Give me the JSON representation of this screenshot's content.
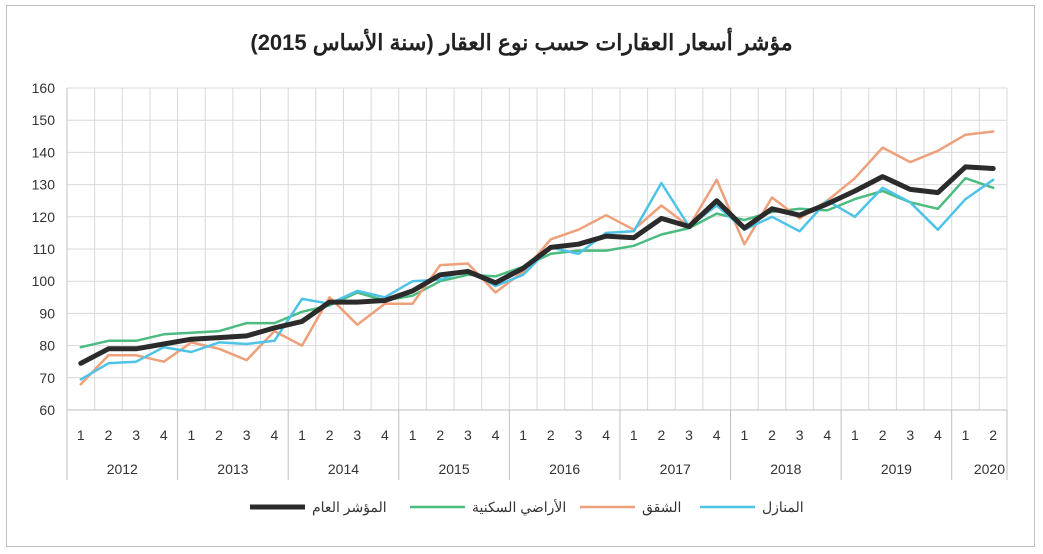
{
  "chart_data": {
    "type": "line",
    "title": "مؤشر أسعار العقارات حسب نوع العقار (سنة الأساس 2015)",
    "ylim": [
      60,
      160
    ],
    "yticks": [
      60,
      70,
      80,
      90,
      100,
      110,
      120,
      130,
      140,
      150,
      160
    ],
    "grid": true,
    "legend_position": "bottom",
    "quarter_labels": [
      "1",
      "2",
      "3",
      "4",
      "1",
      "2",
      "3",
      "4",
      "1",
      "2",
      "3",
      "4",
      "1",
      "2",
      "3",
      "4",
      "1",
      "2",
      "3",
      "4",
      "1",
      "2",
      "3",
      "4",
      "1",
      "2",
      "3",
      "4",
      "1",
      "2",
      "3",
      "4",
      "1",
      "2"
    ],
    "years": [
      "2012",
      "2013",
      "2014",
      "2015",
      "2016",
      "2017",
      "2018",
      "2019",
      "2020"
    ],
    "series": [
      {
        "name": "المؤشر العام",
        "color": "#2b2b2b",
        "width": 5,
        "values": [
          74.5,
          79,
          79,
          80.5,
          82,
          82.5,
          83,
          85.5,
          87.5,
          93.5,
          93.5,
          94,
          97,
          102,
          103,
          99.5,
          104,
          110.5,
          111.5,
          114,
          113.5,
          119.5,
          117,
          125,
          116.5,
          122.5,
          120.5,
          124,
          128,
          132.5,
          128.5,
          127.5,
          135.5,
          135
        ]
      },
      {
        "name": "الأراضي السكنية",
        "color": "#4cbb7f",
        "width": 2.5,
        "values": [
          79.5,
          81.5,
          81.5,
          83.5,
          84,
          84.5,
          87,
          87,
          90.5,
          92.5,
          96.5,
          94,
          95.5,
          100,
          102,
          101.5,
          104.5,
          108.5,
          109.5,
          109.5,
          111,
          114.5,
          116.5,
          121,
          119,
          121.5,
          122.5,
          122,
          125.5,
          128,
          124.5,
          122.5,
          132,
          129
        ]
      },
      {
        "name": "الشقق",
        "color": "#eda07a",
        "width": 2.5,
        "values": [
          68,
          77,
          77,
          75,
          81,
          79,
          75.5,
          84.5,
          80,
          95,
          86.5,
          93,
          93,
          105,
          105.5,
          96.5,
          103,
          113,
          116,
          120.5,
          116,
          123.5,
          117,
          131.5,
          111.5,
          126,
          119.5,
          125,
          132,
          141.5,
          137,
          140.5,
          145.5,
          146.5
        ]
      },
      {
        "name": "المنازل",
        "color": "#4ec3e8",
        "width": 2.5,
        "values": [
          69.5,
          74.5,
          75,
          79.5,
          78,
          81,
          80.5,
          81.5,
          94.5,
          93,
          97,
          95,
          100,
          100.5,
          103.5,
          98.5,
          102,
          110.5,
          108.5,
          115,
          115.5,
          130.5,
          117,
          123.5,
          116,
          120,
          115.5,
          125,
          120,
          129,
          124.5,
          116,
          125.5,
          131.5
        ]
      }
    ]
  }
}
